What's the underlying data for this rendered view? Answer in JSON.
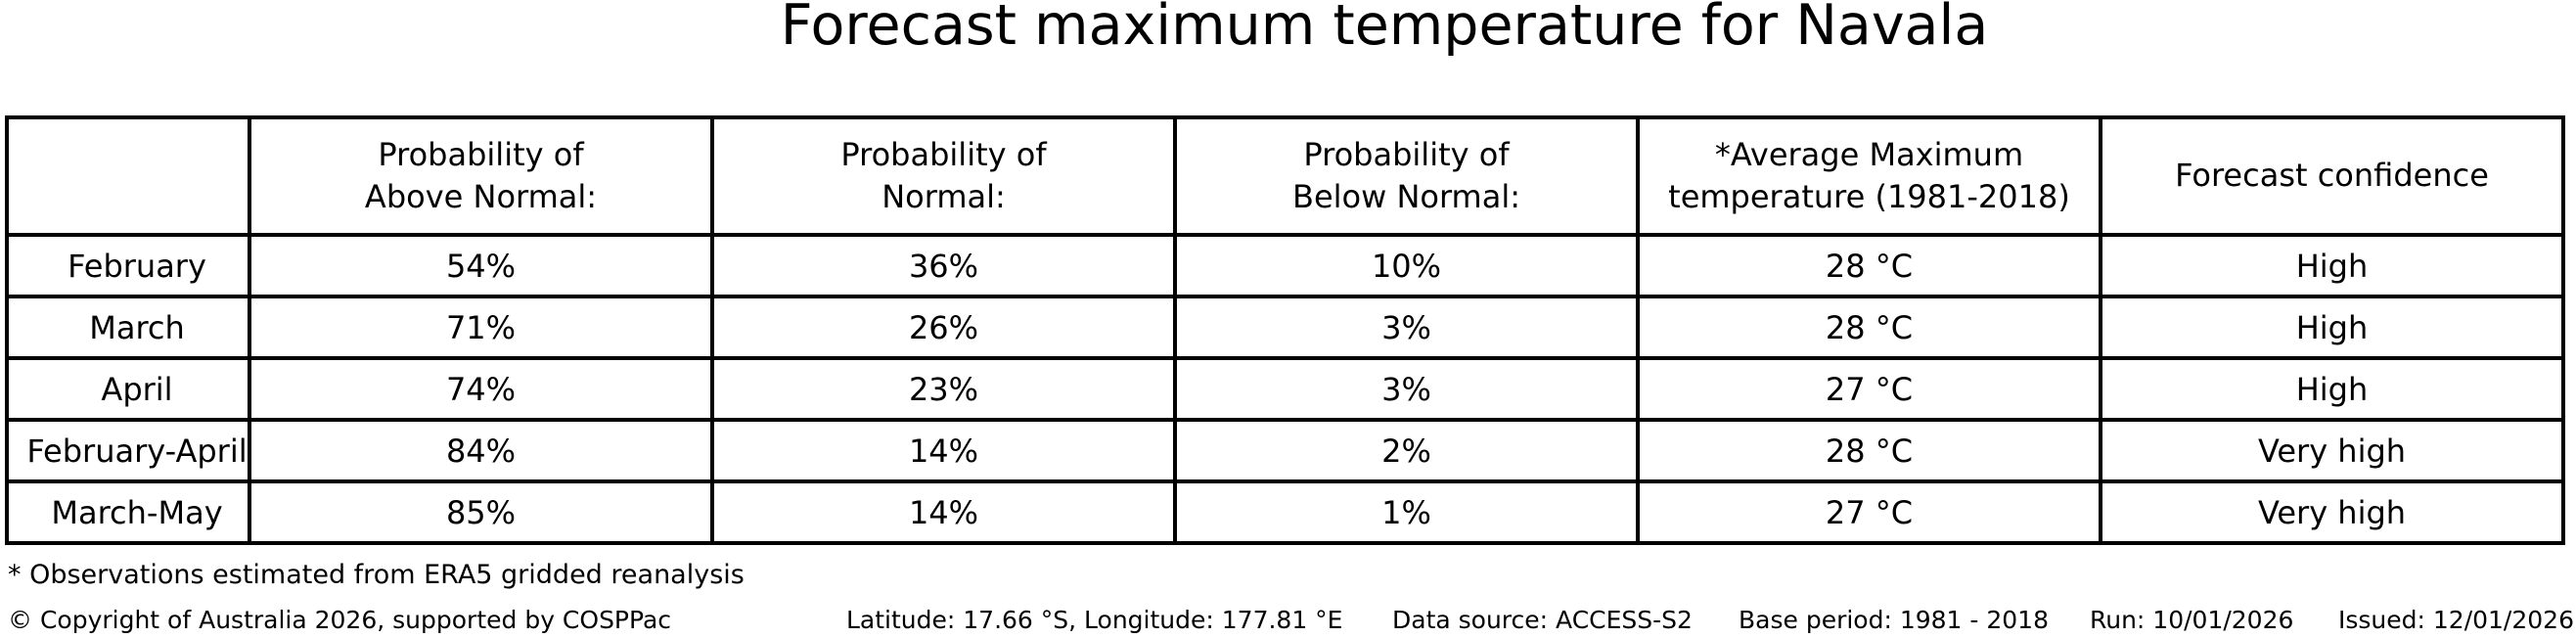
{
  "title": "Forecast maximum temperature for Navala",
  "chart_data": {
    "type": "table",
    "title": "Forecast maximum temperature for Navala",
    "columns": [
      "",
      "Probability of\nAbove Normal:",
      "Probability of\nNormal:",
      "Probability of\nBelow Normal:",
      "*Average Maximum\ntemperature (1981-2018)",
      "Forecast confidence"
    ],
    "rows": [
      {
        "period": "February",
        "above_normal": "54%",
        "normal": "36%",
        "below_normal": "10%",
        "avg_max_temp": "28 °C",
        "confidence": "High"
      },
      {
        "period": "March",
        "above_normal": "71%",
        "normal": "26%",
        "below_normal": "3%",
        "avg_max_temp": "28 °C",
        "confidence": "High"
      },
      {
        "period": "April",
        "above_normal": "74%",
        "normal": "23%",
        "below_normal": "3%",
        "avg_max_temp": "27 °C",
        "confidence": "High"
      },
      {
        "period": "February-April",
        "above_normal": "84%",
        "normal": "14%",
        "below_normal": "2%",
        "avg_max_temp": "28 °C",
        "confidence": "Very high"
      },
      {
        "period": "March-May",
        "above_normal": "85%",
        "normal": "14%",
        "below_normal": "1%",
        "avg_max_temp": "27 °C",
        "confidence": "Very high"
      }
    ],
    "footnote": "* Observations estimated from ERA5 gridded reanalysis"
  },
  "footnote": "* Observations estimated from ERA5 gridded reanalysis",
  "footer": {
    "copyright": "© Copyright of Australia 2026, supported by COSPPac",
    "location": "Latitude: 17.66 °S, Longitude: 177.81 °E",
    "data_source": "Data source: ACCESS-S2",
    "base_period": "Base period: 1981 - 2018",
    "run": "Run: 10/01/2026",
    "issued": "Issued: 12/01/2026"
  }
}
